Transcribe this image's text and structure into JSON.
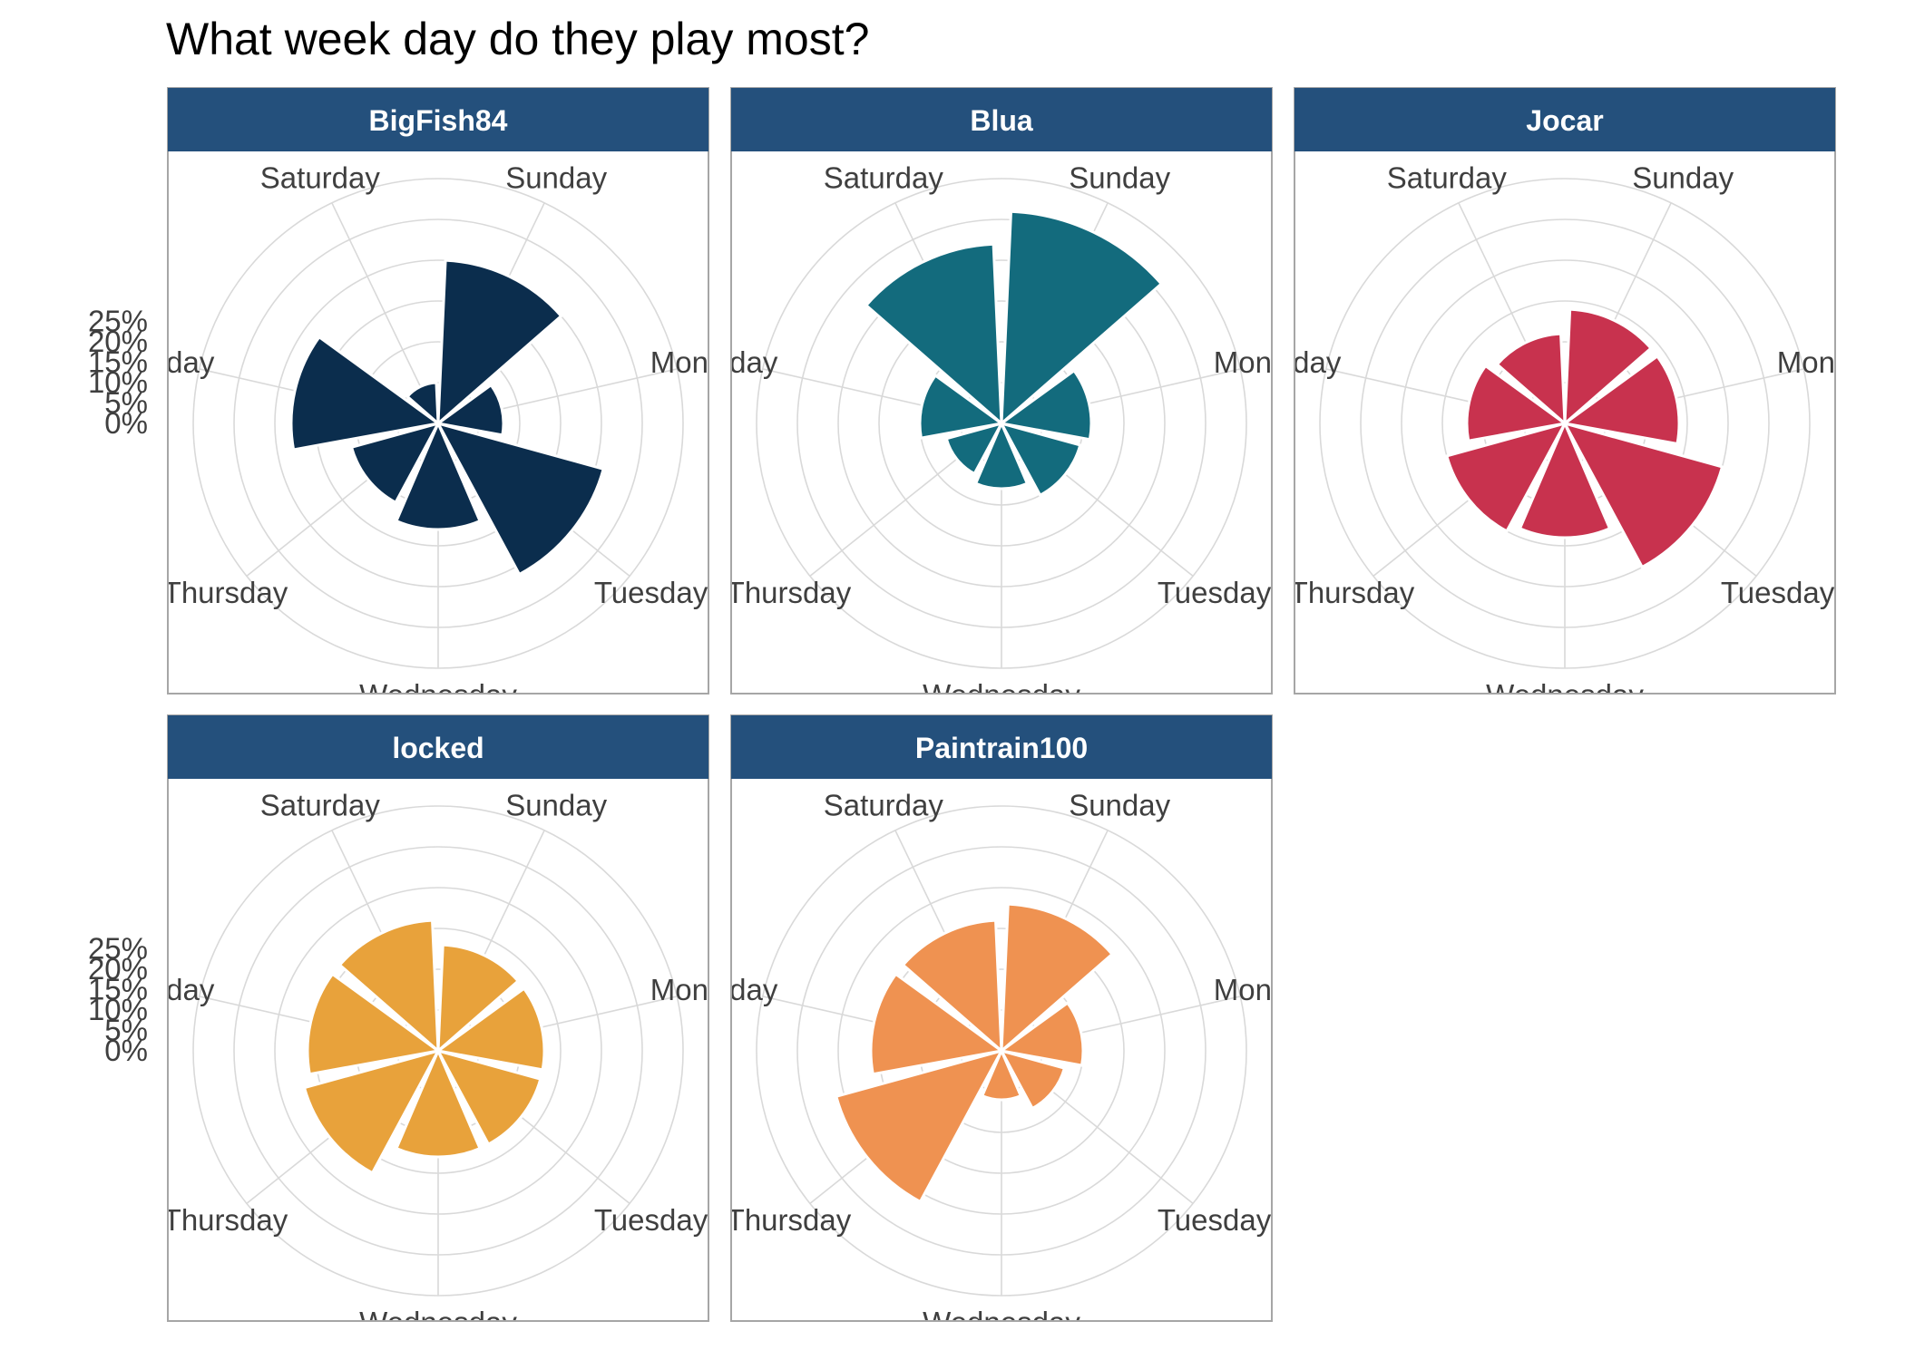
{
  "title": "What week day do they play most?",
  "chart_data": {
    "type": "polar-bar",
    "title": "What week day do they play most?",
    "categories": [
      "Sunday",
      "Monday",
      "Tuesday",
      "Wednesday",
      "Thursday",
      "Friday",
      "Saturday"
    ],
    "radial_ticks": [
      "25%",
      "20%",
      "15%",
      "10%",
      "5%",
      "0%"
    ],
    "ylim": [
      0,
      30
    ],
    "grid": true,
    "legend": "none",
    "colors": {
      "strip_fill": "#24507c",
      "strip_text": "#ffffff",
      "grid": "#d9d9d9",
      "panel_border": "#a6a6a6",
      "label_text": "#3f3f3f"
    },
    "panels": [
      {
        "name": "BigFish84",
        "color": "#0b2d4d",
        "values": [
          20,
          8,
          21,
          13,
          11,
          18,
          5
        ]
      },
      {
        "name": "Blua",
        "color": "#136b7d",
        "values": [
          26,
          11,
          10,
          8,
          7,
          10,
          22
        ]
      },
      {
        "name": "Jocar",
        "color": "#c8324e",
        "values": [
          14,
          14,
          20,
          14,
          15,
          12,
          11
        ]
      },
      {
        "name": "locked",
        "color": "#e8a23b",
        "values": [
          13,
          13,
          13,
          13,
          17,
          16,
          16
        ]
      },
      {
        "name": "Paintrain100",
        "color": "#ef9251",
        "values": [
          18,
          10,
          8,
          6,
          21,
          16,
          16
        ]
      }
    ]
  }
}
